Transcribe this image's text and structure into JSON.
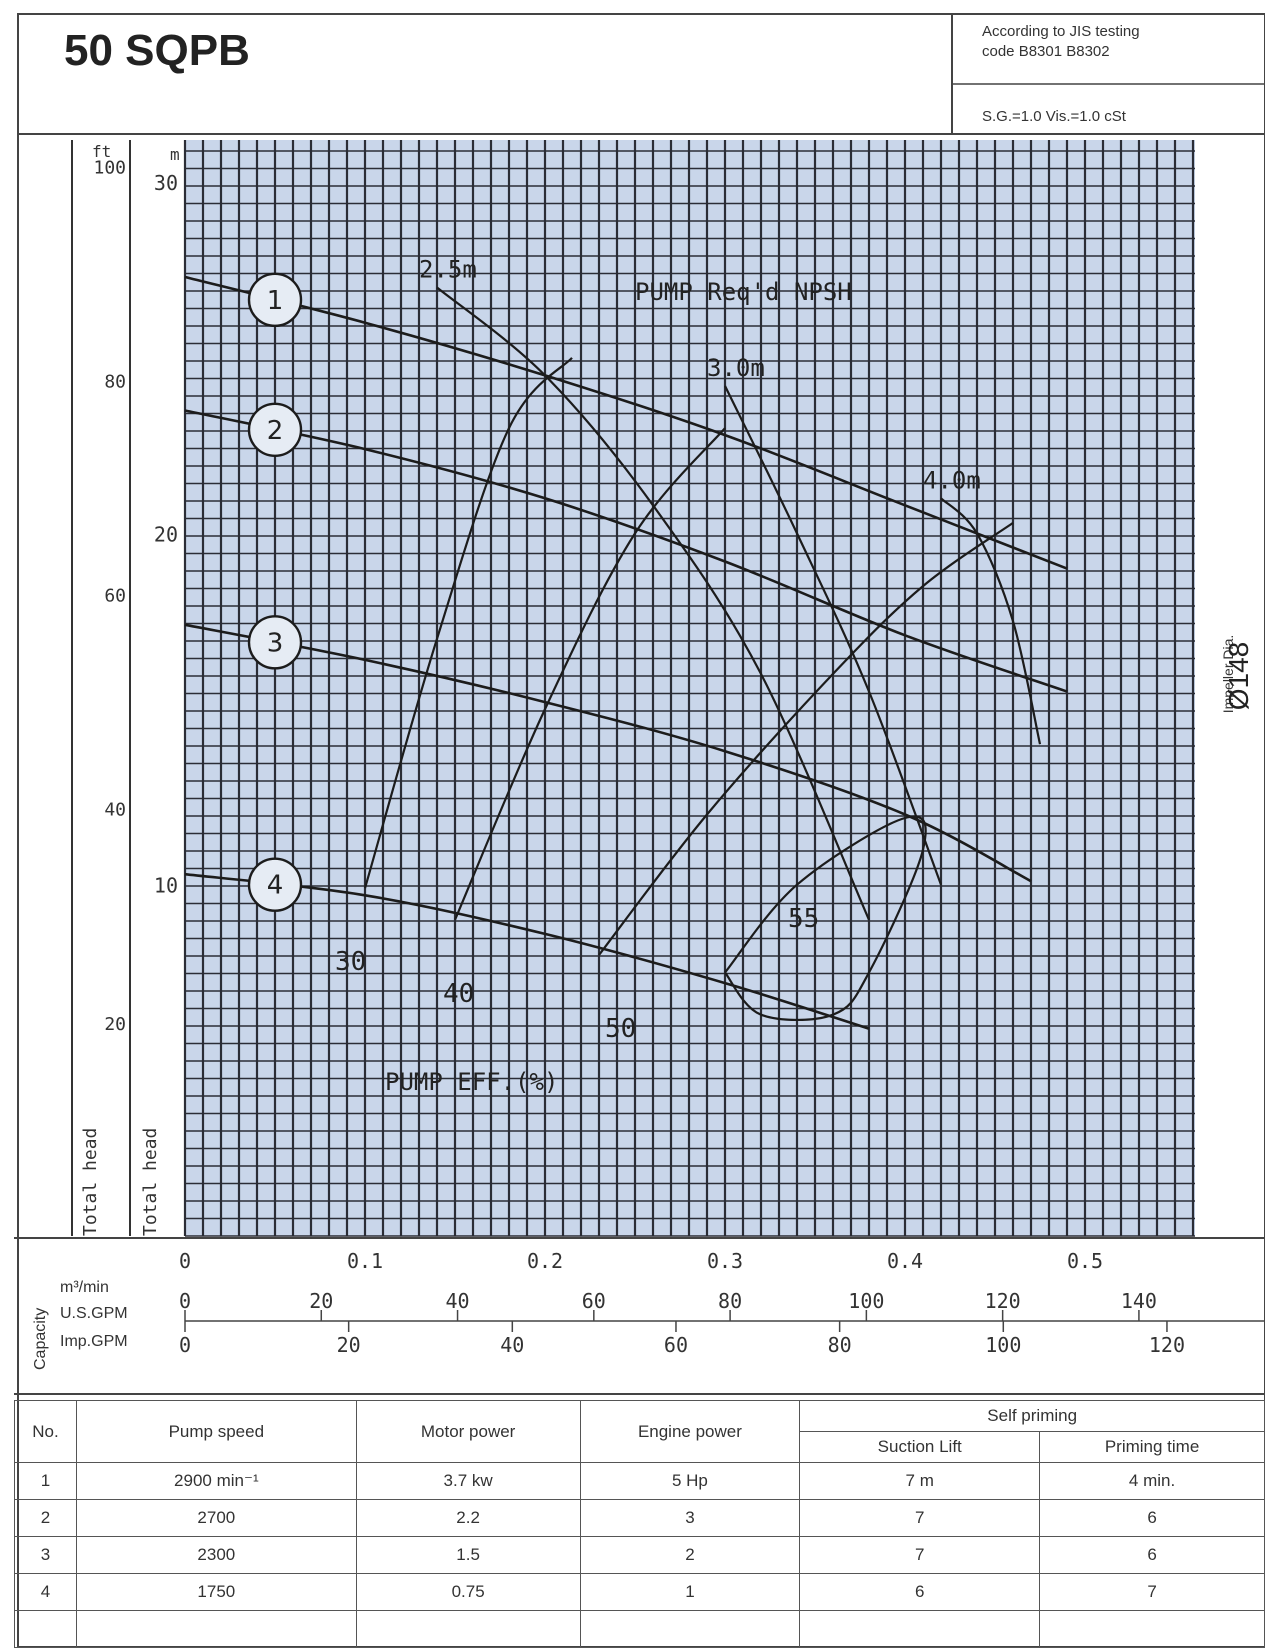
{
  "header": {
    "model": "50 SQPB",
    "standard_line1": "According to JIS testing",
    "standard_line2": "code B8301 B8302",
    "conditions": "S.G.=1.0 Vis.=1.0 cSt"
  },
  "impeller": {
    "label": "Impeller Dia.",
    "value": "Ø148"
  },
  "axes": {
    "ft_unit": "ft",
    "m_unit": "m",
    "head_label_ft": "Total head",
    "head_label_m": "Total head",
    "capacity_label": "Capacity",
    "m3_unit": "m³/min",
    "usgpm_unit": "U.S.GPM",
    "impgpm_unit": "Imp.GPM",
    "ft_ticks": [
      "100",
      "80",
      "60",
      "40",
      "20"
    ],
    "m_ticks": [
      "30",
      "20",
      "10"
    ],
    "m3_ticks": [
      "0",
      "0.1",
      "0.2",
      "0.3",
      "0.4",
      "0.5"
    ],
    "usgpm_ticks": [
      "0",
      "20",
      "40",
      "60",
      "80",
      "100",
      "120",
      "140"
    ],
    "impgpm_ticks": [
      "0",
      "20",
      "40",
      "60",
      "80",
      "100",
      "120"
    ]
  },
  "annotations": {
    "npsh_title": "PUMP Req'd NPSH",
    "eff_title": "PUMP EFF.(%)"
  },
  "colors": {
    "grid_fill": "#c9d6ea",
    "grid_line": "#2b2d36",
    "curve": "#1c1c1c"
  },
  "chart_data": {
    "type": "line",
    "title": "50 SQPB",
    "xlabel": "Capacity m³/min",
    "ylabel": "Total head m",
    "xlim": [
      0,
      0.56
    ],
    "ylim": [
      0,
      31.2
    ],
    "grid": true,
    "series": [
      {
        "name": "1",
        "x": [
          0.0,
          0.1,
          0.2,
          0.3,
          0.4,
          0.49
        ],
        "y": [
          27.3,
          26.0,
          24.5,
          22.8,
          20.8,
          19.0
        ]
      },
      {
        "name": "2",
        "x": [
          0.0,
          0.1,
          0.2,
          0.3,
          0.4,
          0.49
        ],
        "y": [
          23.5,
          22.4,
          21.0,
          19.2,
          17.1,
          15.5
        ]
      },
      {
        "name": "3",
        "x": [
          0.0,
          0.1,
          0.2,
          0.3,
          0.4,
          0.47
        ],
        "y": [
          17.4,
          16.4,
          15.2,
          13.8,
          12.0,
          10.1
        ]
      },
      {
        "name": "4",
        "x": [
          0.0,
          0.1,
          0.2,
          0.3,
          0.38
        ],
        "y": [
          10.3,
          9.7,
          8.6,
          7.2,
          5.9
        ]
      }
    ],
    "series_labels": [
      "1",
      "2",
      "3",
      "4"
    ],
    "efficiency_contours": [
      {
        "label": "30",
        "x": [
          0.1,
          0.14,
          0.18,
          0.215
        ],
        "y": [
          9.9,
          17.0,
          23.0,
          25.0
        ]
      },
      {
        "label": "40",
        "x": [
          0.15,
          0.2,
          0.25,
          0.3
        ],
        "y": [
          9.0,
          15.0,
          20.0,
          23.0
        ]
      },
      {
        "label": "50",
        "x": [
          0.23,
          0.29,
          0.36,
          0.41,
          0.46
        ],
        "y": [
          8.0,
          12.0,
          16.0,
          18.5,
          20.3
        ]
      },
      {
        "label": "55",
        "x": [
          0.3,
          0.32,
          0.36,
          0.38,
          0.41,
          0.4,
          0.34,
          0.3
        ],
        "y": [
          7.5,
          6.3,
          6.3,
          7.5,
          11.0,
          11.9,
          10.0,
          7.5
        ]
      }
    ],
    "npsh_curves": [
      {
        "label": "2.5m",
        "x": [
          0.14,
          0.2,
          0.26,
          0.32,
          0.38
        ],
        "y": [
          27.0,
          24.5,
          20.8,
          16.0,
          9.0
        ]
      },
      {
        "label": "3.0m",
        "x": [
          0.3,
          0.34,
          0.38,
          0.42
        ],
        "y": [
          24.2,
          20.0,
          15.5,
          10.0
        ]
      },
      {
        "label": "4.0m",
        "x": [
          0.42,
          0.44,
          0.46,
          0.475
        ],
        "y": [
          21.0,
          20.0,
          17.5,
          14.0
        ]
      }
    ]
  },
  "table": {
    "headers": {
      "no": "No.",
      "speed": "Pump speed",
      "motor": "Motor power",
      "engine": "Engine power",
      "self_priming": "Self priming",
      "suction": "Suction Lift",
      "priming_time": "Priming time"
    },
    "rows": [
      {
        "no": "1",
        "speed": "2900 min⁻¹",
        "motor": "3.7 kw",
        "engine": "5 Hp",
        "suction": "7 m",
        "priming": "4 min."
      },
      {
        "no": "2",
        "speed": "2700",
        "motor": "2.2",
        "engine": "3",
        "suction": "7",
        "priming": "6"
      },
      {
        "no": "3",
        "speed": "2300",
        "motor": "1.5",
        "engine": "2",
        "suction": "7",
        "priming": "6"
      },
      {
        "no": "4",
        "speed": "1750",
        "motor": "0.75",
        "engine": "1",
        "suction": "6",
        "priming": "7"
      }
    ]
  }
}
